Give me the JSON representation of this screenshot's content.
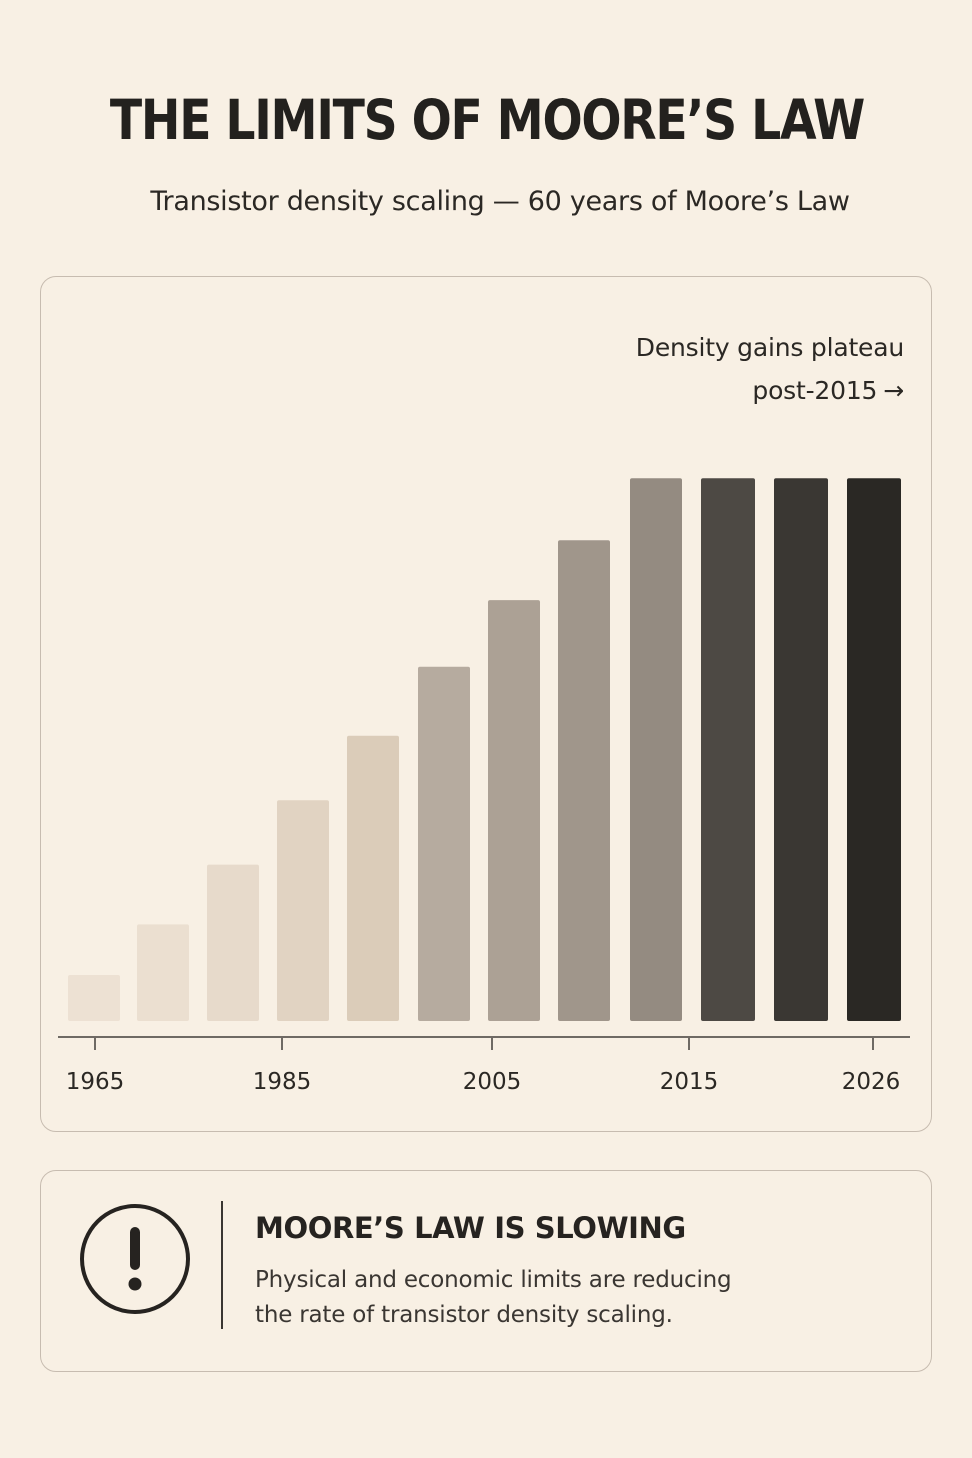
{
  "header": {
    "title": "THE LIMITS OF MOORE’S LAW",
    "subtitle": "Transistor density scaling  —  60 years of Moore’s Law"
  },
  "chart_data": {
    "type": "bar",
    "title": "",
    "xlabel": "",
    "ylabel": "",
    "x_tick_labels": [
      "1965",
      "1985",
      "2005",
      "2015",
      "2026"
    ],
    "annotation": {
      "line1": "Density gains plateau",
      "line2": "post-2015",
      "arrow": "→"
    },
    "values": [
      1,
      2.1,
      3.4,
      4.8,
      6.2,
      7.7,
      9.15,
      10.45,
      11.8,
      11.8,
      11.8,
      11.8
    ],
    "ylim": [
      0,
      12
    ],
    "colors": [
      "#ede1d3",
      "#ebdfd0",
      "#e7dacb",
      "#e1d3c2",
      "#dbccb9",
      "#b6ab9f",
      "#aca195",
      "#a0968b",
      "#948b81",
      "#4d4944",
      "#3a3733",
      "#2a2824"
    ],
    "grid": false,
    "legend": "none"
  },
  "callout": {
    "icon": "exclamation-circle-icon",
    "title": "MOORE’S LAW IS SLOWING",
    "body_line1": "Physical and economic limits are reducing",
    "body_line2": "the rate of transistor density scaling."
  }
}
